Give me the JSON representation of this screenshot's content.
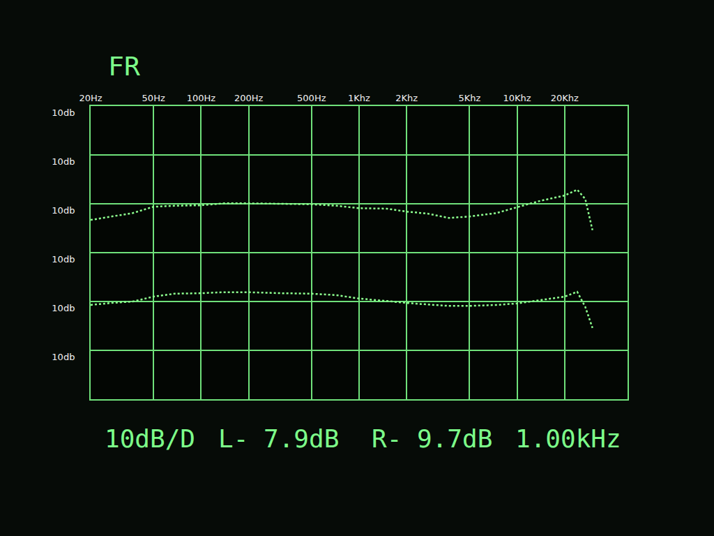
{
  "chart_data": {
    "type": "line",
    "title": "FR",
    "x": [
      20,
      27,
      37,
      50,
      68,
      100,
      140,
      200,
      320,
      500,
      720,
      1000,
      1500,
      2000,
      2700,
      3700,
      5000,
      7400,
      10000,
      14000,
      20000,
      24000,
      27000,
      30000
    ],
    "series": [
      {
        "color": "#8dff8f",
        "values": [
          -23.3,
          -22.6,
          -21.9,
          -20.6,
          -20.4,
          -20.3,
          -19.9,
          -19.9,
          -20,
          -20.1,
          -20.4,
          -20.9,
          -21,
          -21.6,
          -22,
          -22.9,
          -22.6,
          -21.9,
          -20.7,
          -19.4,
          -18.3,
          -17.1,
          -19.0,
          -25.4
        ]
      },
      {
        "color": "#8dff8f",
        "values": [
          -40.7,
          -40.3,
          -40,
          -39,
          -38.4,
          -38.3,
          -38.1,
          -38.1,
          -38.3,
          -38.4,
          -38.7,
          -39.4,
          -39.9,
          -40.3,
          -40.6,
          -40.9,
          -40.9,
          -40.7,
          -40.4,
          -39.7,
          -39,
          -38,
          -41.1,
          -45.4
        ]
      }
    ],
    "xlim": [
      20,
      50000
    ],
    "xticks": [
      {
        "value": 20,
        "label": "20Hz"
      },
      {
        "value": 50,
        "label": "50Hz"
      },
      {
        "value": 100,
        "label": "100Hz"
      },
      {
        "value": 200,
        "label": "200Hz"
      },
      {
        "value": 500,
        "label": "500Hz"
      },
      {
        "value": 1000,
        "label": "1Khz"
      },
      {
        "value": 2000,
        "label": "2Khz"
      },
      {
        "value": 5000,
        "label": "5Khz"
      },
      {
        "value": 10000,
        "label": "10Khz"
      },
      {
        "value": 20000,
        "label": "20Khz"
      }
    ],
    "ylim": [
      -60,
      0
    ],
    "yticks": [
      {
        "value": 0,
        "label": "10db"
      },
      {
        "value": -10,
        "label": "10db"
      },
      {
        "value": -20,
        "label": "10db"
      },
      {
        "value": -30,
        "label": "10db"
      },
      {
        "value": -40,
        "label": "10db"
      },
      {
        "value": -50,
        "label": "10db"
      }
    ],
    "log": "x",
    "grid": true,
    "line_style": "dotted",
    "annotations": [
      "10dB/D",
      "L- 7.9dB",
      "R- 9.7dB",
      "1.00kHz"
    ]
  }
}
